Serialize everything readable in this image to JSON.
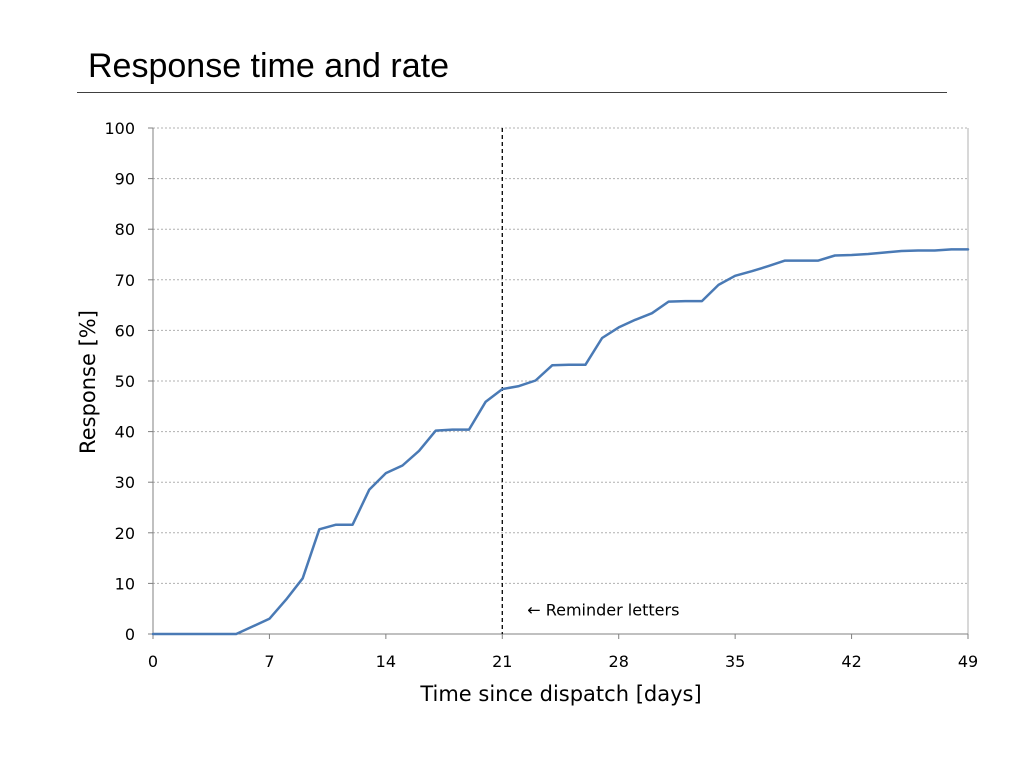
{
  "slide": {
    "title": "Response time and rate"
  },
  "chart_data": {
    "type": "line",
    "title": "",
    "xlabel": "Time since dispatch [days]",
    "ylabel": "Response [%]",
    "xlim": [
      0,
      49
    ],
    "ylim": [
      0,
      100
    ],
    "xticks": [
      0,
      7,
      14,
      21,
      28,
      35,
      42,
      49
    ],
    "yticks": [
      0,
      10,
      20,
      30,
      40,
      50,
      60,
      70,
      80,
      90,
      100
    ],
    "grid": "horizontal dashed",
    "series": [
      {
        "color": "#4a7ab5",
        "x": [
          0,
          1,
          2,
          3,
          4,
          5,
          6,
          7,
          8,
          9,
          10,
          11,
          12,
          13,
          14,
          15,
          16,
          17,
          18,
          19,
          20,
          21,
          22,
          23,
          24,
          25,
          26,
          27,
          28,
          29,
          30,
          31,
          32,
          33,
          34,
          35,
          36,
          37,
          38,
          39,
          40,
          41,
          42,
          43,
          44,
          45,
          46,
          47,
          48,
          49
        ],
        "y": [
          0,
          0,
          0,
          0,
          0,
          0,
          1.5,
          3,
          6.8,
          11,
          20.7,
          21.6,
          21.6,
          28.5,
          31.8,
          33.3,
          36.2,
          40.2,
          40.4,
          40.4,
          45.9,
          48.4,
          49,
          50.1,
          53.1,
          53.2,
          53.2,
          58.5,
          60.6,
          62.1,
          63.4,
          65.7,
          65.8,
          65.8,
          69,
          70.8,
          71.7,
          72.7,
          73.8,
          73.8,
          73.8,
          74.8,
          74.9,
          75.1,
          75.4,
          75.7,
          75.8,
          75.8,
          76,
          76
        ]
      }
    ],
    "annotations": [
      {
        "x": 21,
        "style": "vertical dashed line",
        "color": "#000000"
      },
      {
        "x": 22.5,
        "y": 4.8,
        "text": "← Reminder letters"
      }
    ]
  }
}
